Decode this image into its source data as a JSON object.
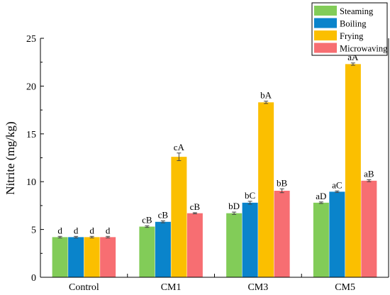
{
  "chart_data": {
    "type": "bar",
    "title": "",
    "xlabel": "",
    "ylabel": "Nitrite (mg/kg)",
    "ylim": [
      0,
      25
    ],
    "yticks": [
      "0",
      "5",
      "10",
      "15",
      "20",
      "25"
    ],
    "grid": false,
    "legend_position": "top-right",
    "categories": [
      "Control",
      "CM1",
      "CM3",
      "CM5"
    ],
    "series": [
      {
        "name": "Steaming",
        "color": "#82CC58",
        "values": [
          4.2,
          5.3,
          6.7,
          7.8
        ],
        "errors": [
          0.08,
          0.08,
          0.12,
          0.08
        ],
        "labels": [
          "d",
          "cB",
          "bD",
          "aD"
        ]
      },
      {
        "name": "Boiling",
        "color": "#0A84CB",
        "values": [
          4.2,
          5.8,
          7.8,
          8.95
        ],
        "errors": [
          0.08,
          0.1,
          0.15,
          0.08
        ],
        "labels": [
          "d",
          "cB",
          "bC",
          "aC"
        ]
      },
      {
        "name": "Frying",
        "color": "#FBBF00",
        "values": [
          4.2,
          12.6,
          18.3,
          22.3
        ],
        "errors": [
          0.08,
          0.4,
          0.12,
          0.12
        ],
        "labels": [
          "d",
          "cA",
          "bA",
          "aA"
        ]
      },
      {
        "name": "Microwaving",
        "color": "#F76E72",
        "values": [
          4.2,
          6.7,
          9.05,
          10.1
        ],
        "errors": [
          0.08,
          0.06,
          0.2,
          0.1
        ],
        "labels": [
          "d",
          "cB",
          "bB",
          "aB"
        ]
      }
    ]
  }
}
